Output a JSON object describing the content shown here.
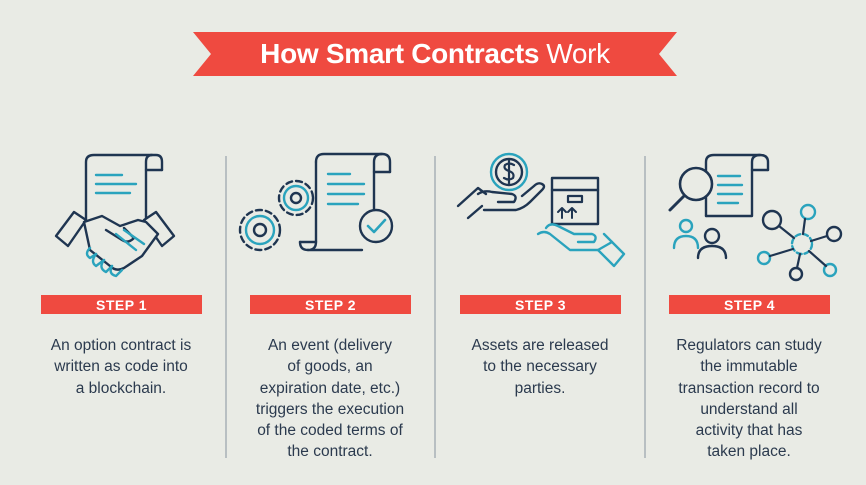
{
  "header": {
    "title_bold": "How Smart Contracts",
    "title_light": "Work",
    "banner_color": "#ef4a40"
  },
  "colors": {
    "background": "#e9ebe5",
    "icon_dark": "#1f3551",
    "icon_teal": "#2aa3bd",
    "text": "#2b3a4e"
  },
  "steps": [
    {
      "label": "STEP 1",
      "description": "An option contract is\nwritten as code into\na blockchain.",
      "icon": "handshake-contract-icon"
    },
    {
      "label": "STEP 2",
      "description": "An event (delivery\nof goods, an\nexpiration date, etc.)\ntriggers the execution\nof the coded terms of\nthe contract.",
      "icon": "gears-contract-check-icon"
    },
    {
      "label": "STEP 3",
      "description": "Assets are released\nto the necessary\nparties.",
      "icon": "hands-coin-box-icon"
    },
    {
      "label": "STEP 4",
      "description": "Regulators can study\nthe immutable\ntransaction record to\nunderstand all\nactivity that has\ntaken place.",
      "icon": "magnifier-network-people-icon"
    }
  ]
}
